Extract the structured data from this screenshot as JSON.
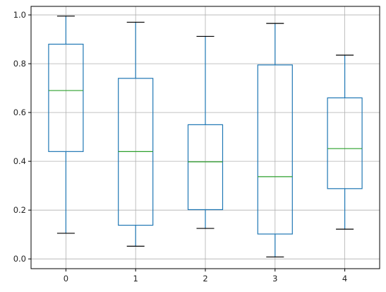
{
  "chart_data": {
    "type": "box",
    "title": "",
    "xlabel": "",
    "ylabel": "",
    "categories": [
      "0",
      "1",
      "2",
      "3",
      "4"
    ],
    "boxes": [
      {
        "category": "0",
        "whisker_low": 0.105,
        "q1": 0.44,
        "median": 0.69,
        "q3": 0.88,
        "whisker_high": 0.995
      },
      {
        "category": "1",
        "whisker_low": 0.052,
        "q1": 0.138,
        "median": 0.44,
        "q3": 0.74,
        "whisker_high": 0.97
      },
      {
        "category": "2",
        "whisker_low": 0.125,
        "q1": 0.202,
        "median": 0.398,
        "q3": 0.55,
        "whisker_high": 0.912
      },
      {
        "category": "3",
        "whisker_low": 0.008,
        "q1": 0.102,
        "median": 0.337,
        "q3": 0.795,
        "whisker_high": 0.965
      },
      {
        "category": "4",
        "whisker_low": 0.122,
        "q1": 0.288,
        "median": 0.452,
        "q3": 0.66,
        "whisker_high": 0.835
      }
    ],
    "ylim": [
      -0.04,
      1.035
    ],
    "yticks": [
      "0.0",
      "0.2",
      "0.4",
      "0.6",
      "0.8",
      "1.0"
    ],
    "grid": true,
    "colors": {
      "box": "#1f77b4",
      "median": "#2ca02c",
      "whisker_cap": "#000000",
      "grid": "#b0b0b0",
      "axis": "#000000"
    }
  }
}
